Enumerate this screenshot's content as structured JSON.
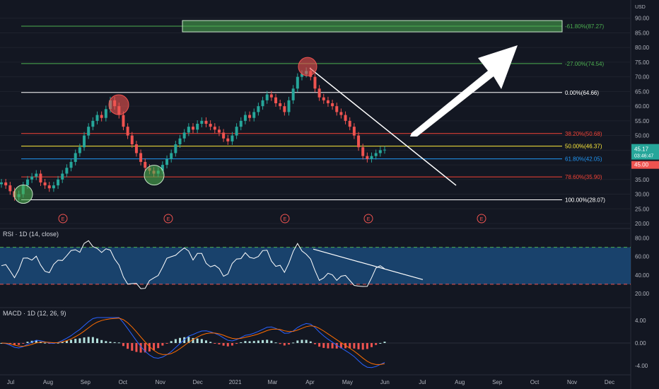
{
  "chart_data": {
    "type": "candlestick",
    "currency": "USD",
    "price_axis": {
      "ylim": [
        20,
        95
      ],
      "ticks": [
        "90.00",
        "85.00",
        "80.00",
        "75.00",
        "70.00",
        "65.00",
        "60.00",
        "55.00",
        "50.00",
        "45.00",
        "40.00",
        "35.00",
        "30.00",
        "25.00",
        "20.00"
      ]
    },
    "time_axis": {
      "labels": [
        "Jul",
        "Aug",
        "Sep",
        "Oct",
        "Nov",
        "Dec",
        "2021",
        "Mar",
        "Apr",
        "May",
        "Jun",
        "Jul",
        "Aug",
        "Sep",
        "Oct",
        "Nov",
        "Dec"
      ]
    },
    "fib_levels": [
      {
        "label": "-61.80%(87.27)",
        "value": 87.27,
        "color": "#4caf50"
      },
      {
        "label": "-27.00%(74.54)",
        "value": 74.54,
        "color": "#4caf50"
      },
      {
        "label": "0.00%(64.66)",
        "value": 64.66,
        "color": "#ffffff"
      },
      {
        "label": "38.20%(50.68)",
        "value": 50.68,
        "color": "#f44336"
      },
      {
        "label": "50.00%(46.37)",
        "value": 46.37,
        "color": "#ffeb3b"
      },
      {
        "label": "61.80%(42.05)",
        "value": 42.05,
        "color": "#2196f3"
      },
      {
        "label": "78.60%(35.90)",
        "value": 35.9,
        "color": "#f44336"
      },
      {
        "label": "100.00%(28.07)",
        "value": 28.07,
        "color": "#ffffff"
      }
    ],
    "last_price": {
      "value": "45.17",
      "countdown": "03:46:47",
      "secondary": "45.00"
    },
    "earnings_marker": "E",
    "close_series": [
      34,
      33,
      31,
      29,
      30,
      33,
      35,
      36,
      37,
      34,
      33,
      32,
      33,
      35,
      37,
      39,
      41,
      44,
      46,
      50,
      53,
      55,
      57,
      56,
      59,
      62,
      60,
      57,
      53,
      50,
      47,
      44,
      41,
      39,
      38,
      37,
      38,
      40,
      42,
      44,
      47,
      49,
      51,
      53,
      52,
      54,
      55,
      54,
      53,
      52,
      51,
      49,
      48,
      50,
      53,
      55,
      57,
      56,
      58,
      60,
      62,
      64,
      63,
      61,
      60,
      58,
      62,
      66,
      70,
      71,
      72,
      70,
      66,
      63,
      62,
      61,
      60,
      58,
      57,
      55,
      53,
      50,
      46,
      43,
      42,
      43,
      44,
      45,
      45.17
    ],
    "rsi": {
      "label": "RSI · 1D (14, close)",
      "ylim": [
        10,
        85
      ],
      "ticks": [
        "80.00",
        "60.00",
        "40.00",
        "20.00"
      ],
      "band": [
        30,
        70
      ]
    },
    "macd": {
      "label": "MACD · 1D (12, 26, 9)",
      "ylim": [
        -5,
        5
      ],
      "ticks": [
        "4.00",
        "0.00",
        "-4.00"
      ]
    }
  }
}
